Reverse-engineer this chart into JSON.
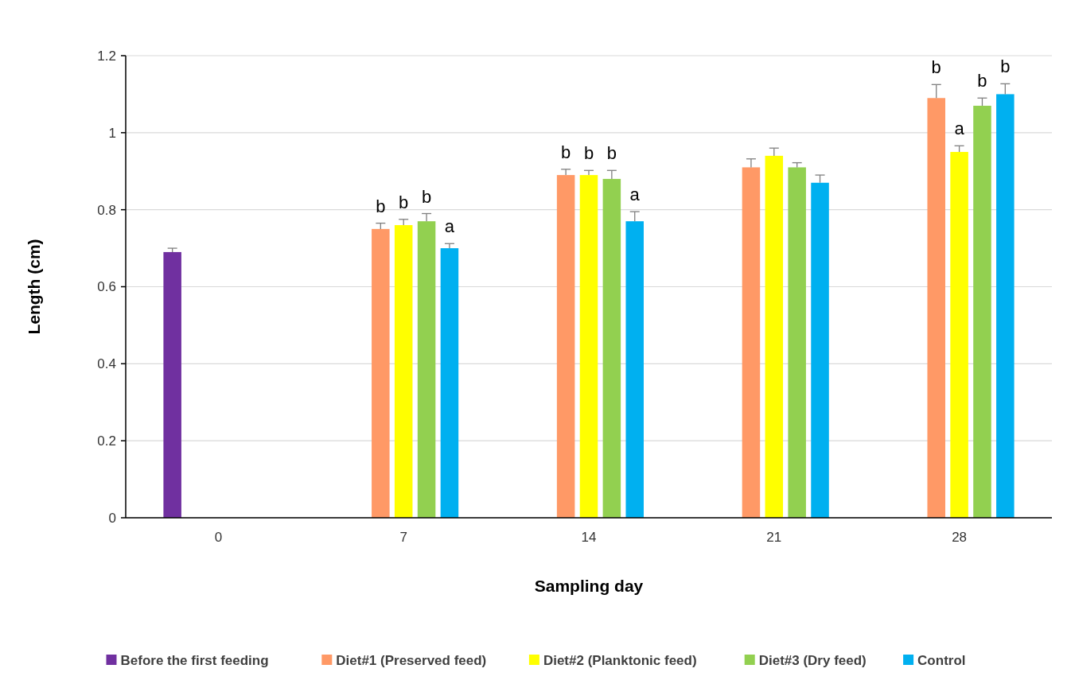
{
  "chart_data": {
    "type": "bar",
    "xlabel": "Sampling day",
    "ylabel": "Length (cm)",
    "categories": [
      "0",
      "7",
      "14",
      "21",
      "28"
    ],
    "series": [
      {
        "name": "Before the first feeding",
        "color": "#7030a0",
        "values": [
          0.69,
          null,
          null,
          null,
          null
        ],
        "errors": [
          [
            0.69,
            0.7
          ],
          null,
          null,
          null,
          null
        ]
      },
      {
        "name": "Diet#1 (Preserved feed)",
        "color": "#ff9966",
        "values": [
          null,
          0.75,
          0.89,
          0.91,
          1.09
        ],
        "errors": [
          null,
          [
            0.75,
            0.765
          ],
          [
            0.89,
            0.905
          ],
          [
            0.91,
            0.932
          ],
          [
            1.09,
            1.125
          ]
        ],
        "value_labels": [
          null,
          "b",
          "b",
          null,
          "b"
        ]
      },
      {
        "name": "Diet#2 (Planktonic feed)",
        "color": "#ffff00",
        "values": [
          null,
          0.76,
          0.89,
          0.94,
          0.95
        ],
        "errors": [
          null,
          [
            0.76,
            0.775
          ],
          [
            0.89,
            0.902
          ],
          [
            0.94,
            0.96
          ],
          [
            0.95,
            0.966
          ]
        ],
        "value_labels": [
          null,
          "b",
          "b",
          null,
          "a"
        ]
      },
      {
        "name": "Diet#3 (Dry feed)",
        "color": "#92d050",
        "values": [
          null,
          0.77,
          0.88,
          0.91,
          1.07
        ],
        "errors": [
          null,
          [
            0.77,
            0.79
          ],
          [
            0.88,
            0.902
          ],
          [
            0.91,
            0.922
          ],
          [
            1.07,
            1.09
          ]
        ],
        "value_labels": [
          null,
          "b",
          "b",
          null,
          "b"
        ]
      },
      {
        "name": "Control",
        "color": "#00b0f0",
        "values": [
          null,
          0.7,
          0.77,
          0.87,
          1.1
        ],
        "errors": [
          null,
          [
            0.7,
            0.712
          ],
          [
            0.77,
            0.795
          ],
          [
            0.87,
            0.89
          ],
          [
            1.1,
            1.127
          ]
        ],
        "value_labels": [
          null,
          "a",
          "a",
          null,
          "b"
        ]
      }
    ],
    "ylim": [
      0,
      1.2
    ],
    "yticks": [
      0,
      0.2,
      0.4,
      0.6,
      0.8,
      1,
      1.2
    ],
    "grid": "y",
    "legend": "bottom"
  }
}
